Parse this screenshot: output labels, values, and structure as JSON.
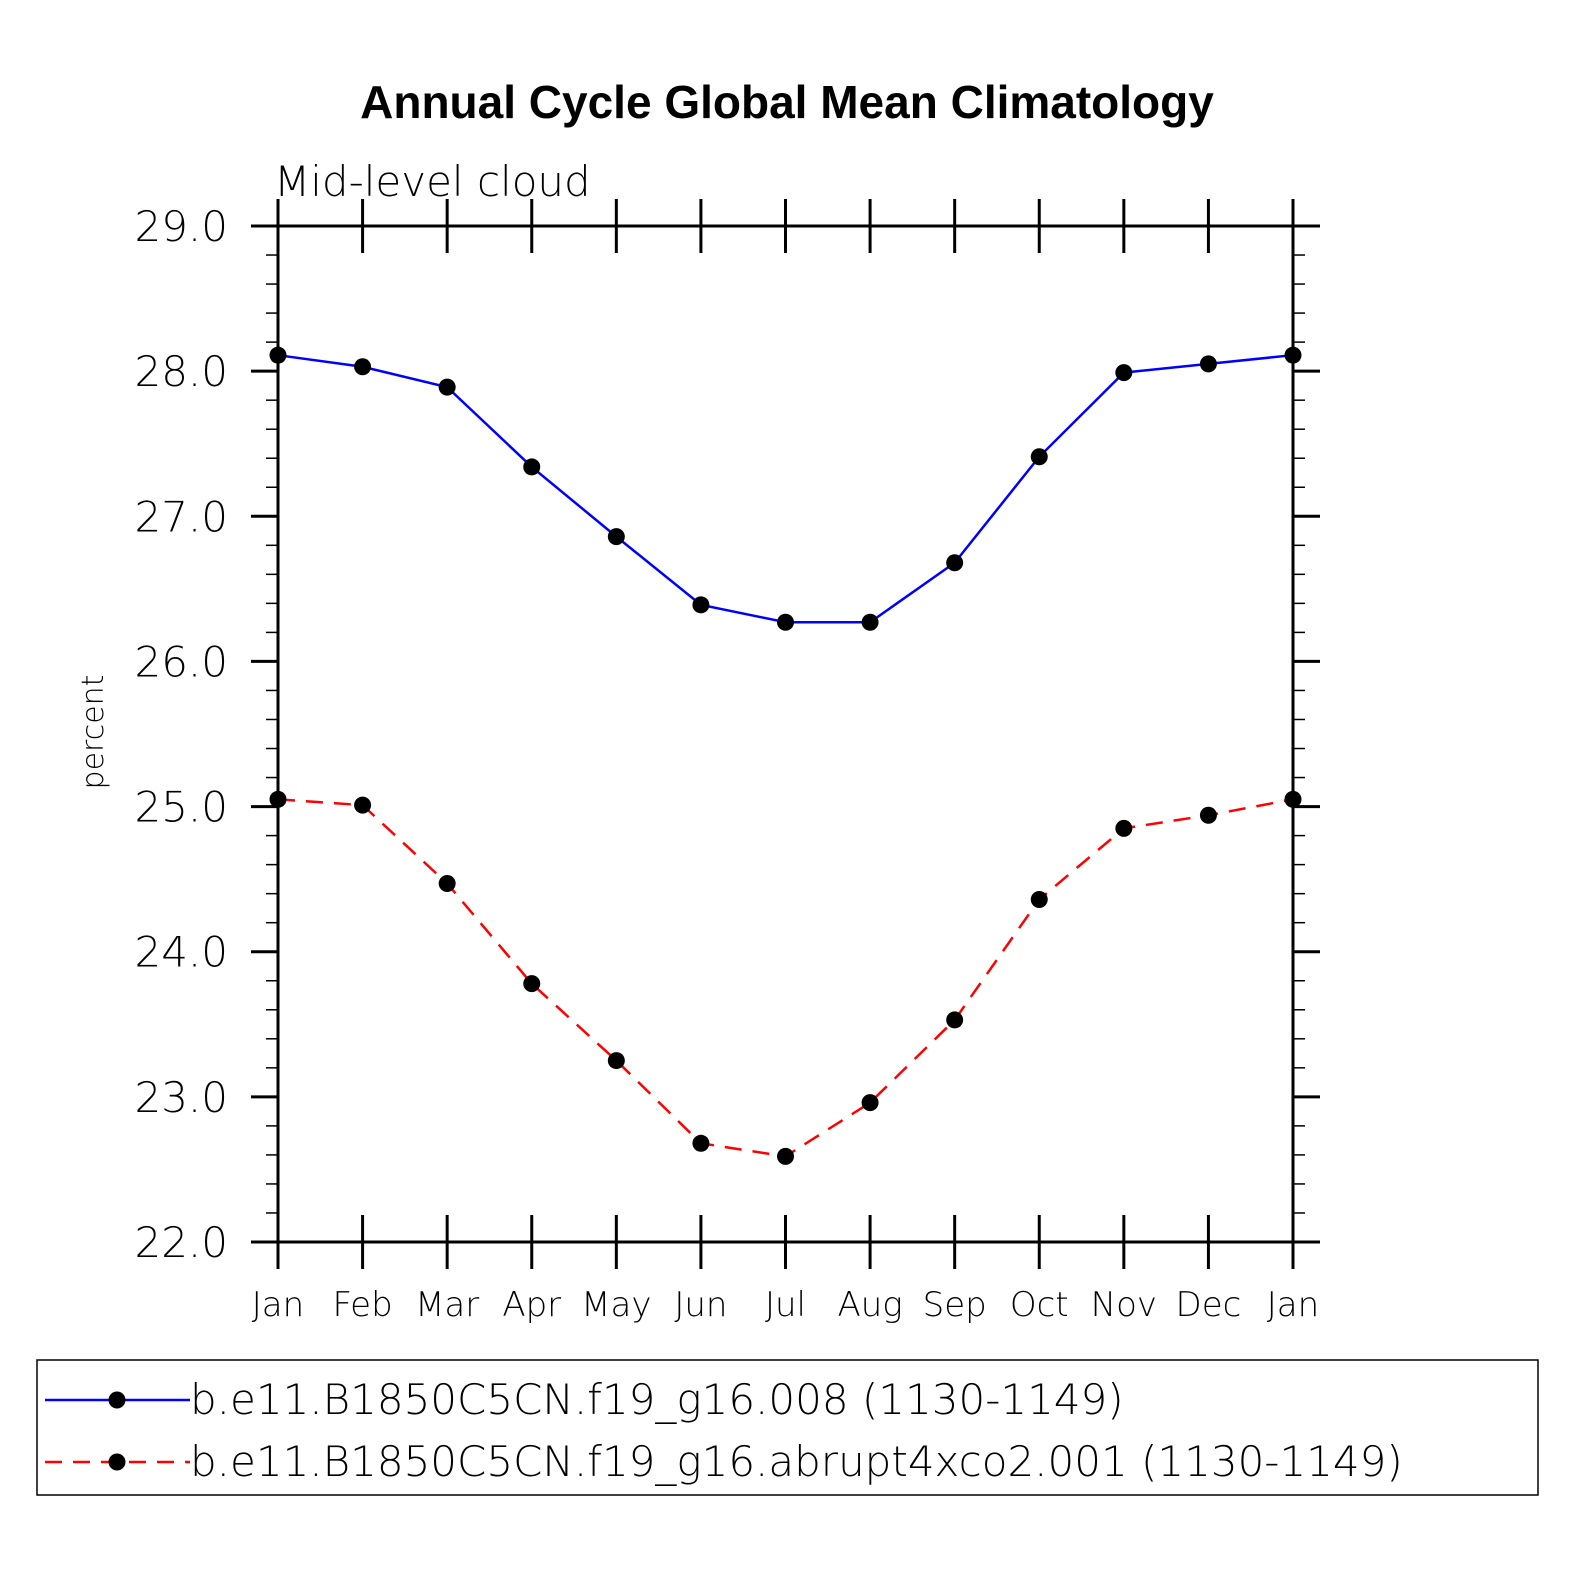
{
  "chart_data": {
    "type": "line",
    "title": "Annual Cycle Global Mean Climatology",
    "subtitle": "Mid-level cloud",
    "xlabel": "",
    "ylabel": "percent",
    "ylim": [
      22.0,
      29.0
    ],
    "yticks": [
      "22.0",
      "23.0",
      "24.0",
      "25.0",
      "26.0",
      "27.0",
      "28.0",
      "29.0"
    ],
    "categories": [
      "Jan",
      "Feb",
      "Mar",
      "Apr",
      "May",
      "Jun",
      "Jul",
      "Aug",
      "Sep",
      "Oct",
      "Nov",
      "Dec",
      "Jan"
    ],
    "series": [
      {
        "name": "b.e11.B1850C5CN.f19_g16.008 (1130-1149)",
        "color": "#0000ff",
        "dash": "solid",
        "values": [
          28.11,
          28.03,
          27.89,
          27.34,
          26.86,
          26.39,
          26.27,
          26.27,
          26.68,
          27.41,
          27.99,
          28.05,
          28.11
        ]
      },
      {
        "name": "b.e11.B1850C5CN.f19_g16.abrupt4xco2.001 (1130-1149)",
        "color": "#ff0000",
        "dash": "dashed",
        "values": [
          25.05,
          25.01,
          24.47,
          23.78,
          23.25,
          22.68,
          22.59,
          22.96,
          23.53,
          24.36,
          24.85,
          24.94,
          25.05
        ]
      }
    ]
  }
}
